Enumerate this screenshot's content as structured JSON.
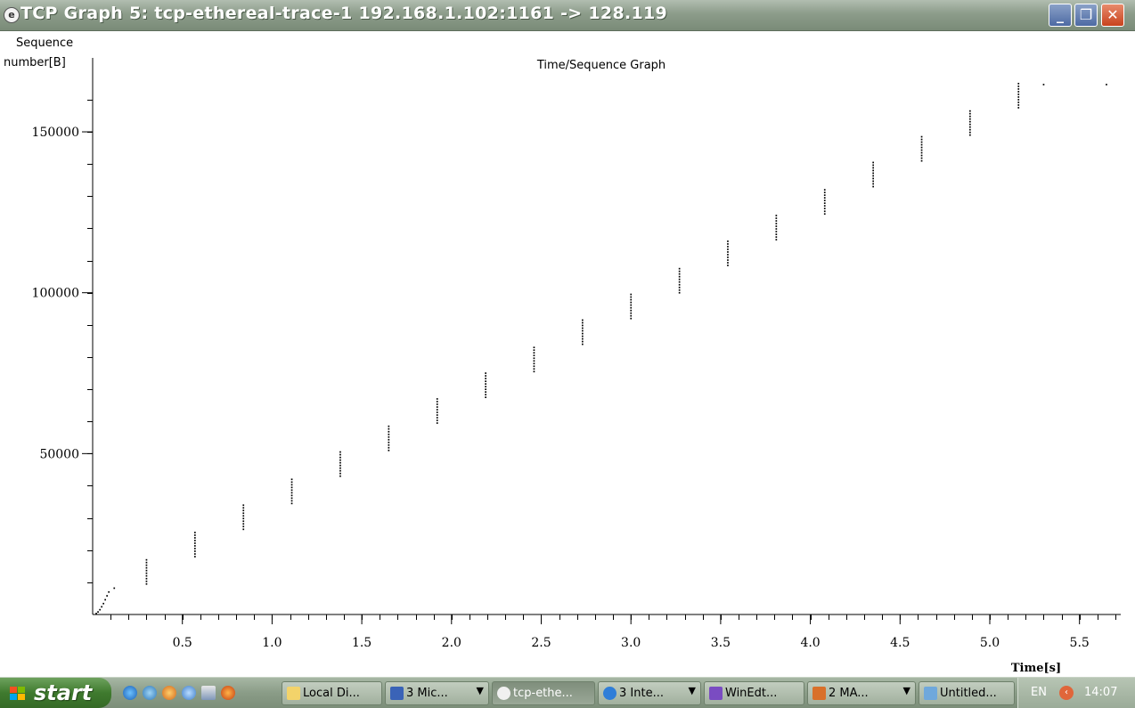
{
  "window": {
    "title": "TCP Graph 5: tcp-ethereal-trace-1 192.168.1.102:1161 -> 128.119",
    "icon": "ethereal-icon",
    "buttons": [
      "minimize-icon",
      "restore-icon",
      "close-icon"
    ]
  },
  "chart_data": {
    "type": "scatter",
    "title": "Time/Sequence Graph",
    "ylabel_line1": "Sequence",
    "ylabel_line2": "number[B]",
    "xlabel": "Time[s]",
    "xlim": [
      0.0,
      5.73
    ],
    "ylim": [
      0,
      168000
    ],
    "x_ticks": [
      "0.5",
      "1.0",
      "1.5",
      "2.0",
      "2.5",
      "3.0",
      "3.5",
      "4.0",
      "4.5",
      "5.0",
      "5.5"
    ],
    "x_tick_values": [
      0.5,
      1.0,
      1.5,
      2.0,
      2.5,
      3.0,
      3.5,
      4.0,
      4.5,
      5.0,
      5.5
    ],
    "y_ticks": [
      "50000",
      "100000",
      "150000"
    ],
    "y_tick_values": [
      50000,
      100000,
      150000
    ],
    "grid": false,
    "series": [
      {
        "bursts": [
          {
            "x": 0.3,
            "y_start": 9500,
            "y_end": 17000
          },
          {
            "x": 0.57,
            "y_start": 18000,
            "y_end": 25500
          },
          {
            "x": 0.84,
            "y_start": 26500,
            "y_end": 34000
          },
          {
            "x": 1.11,
            "y_start": 34500,
            "y_end": 42000
          },
          {
            "x": 1.38,
            "y_start": 43000,
            "y_end": 50500
          },
          {
            "x": 1.65,
            "y_start": 51000,
            "y_end": 58500
          },
          {
            "x": 1.92,
            "y_start": 59500,
            "y_end": 67000
          },
          {
            "x": 2.19,
            "y_start": 67500,
            "y_end": 75000
          },
          {
            "x": 2.46,
            "y_start": 75500,
            "y_end": 83000
          },
          {
            "x": 2.73,
            "y_start": 84000,
            "y_end": 91500
          },
          {
            "x": 3.0,
            "y_start": 92000,
            "y_end": 99500
          },
          {
            "x": 3.27,
            "y_start": 100000,
            "y_end": 107500
          },
          {
            "x": 3.54,
            "y_start": 108500,
            "y_end": 116000
          },
          {
            "x": 3.81,
            "y_start": 116500,
            "y_end": 124000
          },
          {
            "x": 4.08,
            "y_start": 124500,
            "y_end": 132000
          },
          {
            "x": 4.35,
            "y_start": 133000,
            "y_end": 140500
          },
          {
            "x": 4.62,
            "y_start": 141000,
            "y_end": 148500
          },
          {
            "x": 4.89,
            "y_start": 149000,
            "y_end": 156500
          },
          {
            "x": 5.16,
            "y_start": 157500,
            "y_end": 165000
          }
        ],
        "initial_points": [
          [
            0.02,
            300
          ],
          [
            0.03,
            800
          ],
          [
            0.04,
            1500
          ],
          [
            0.05,
            2400
          ],
          [
            0.06,
            3400
          ],
          [
            0.07,
            4600
          ],
          [
            0.08,
            5800
          ],
          [
            0.09,
            7000
          ],
          [
            0.12,
            8200
          ]
        ],
        "tail_points": [
          [
            5.3,
            164700
          ],
          [
            5.65,
            164700
          ]
        ]
      }
    ]
  },
  "taskbar": {
    "start_label": "start",
    "quick_launch": [
      "ie-icon",
      "media-icon",
      "firefox-icon",
      "outlook-icon",
      "network-icon",
      "firefox-alt-icon"
    ],
    "tasks": [
      {
        "label": "Local Di...",
        "icon": "folder-icon",
        "arrow": false,
        "active": false
      },
      {
        "label": "3 Mic...",
        "icon": "word-icon",
        "arrow": true,
        "active": false
      },
      {
        "label": "tcp-ethe...",
        "icon": "ethereal-icon",
        "arrow": false,
        "active": true
      },
      {
        "label": "3 Inte...",
        "icon": "ie-icon",
        "arrow": true,
        "active": false
      },
      {
        "label": "WinEdt...",
        "icon": "winedt-icon",
        "arrow": false,
        "active": false
      },
      {
        "label": "2 MA...",
        "icon": "matlab-icon",
        "arrow": true,
        "active": false
      },
      {
        "label": "Untitled...",
        "icon": "notepad-icon",
        "arrow": false,
        "active": false
      }
    ],
    "tray": {
      "language": "EN",
      "clock": "14:07"
    }
  }
}
